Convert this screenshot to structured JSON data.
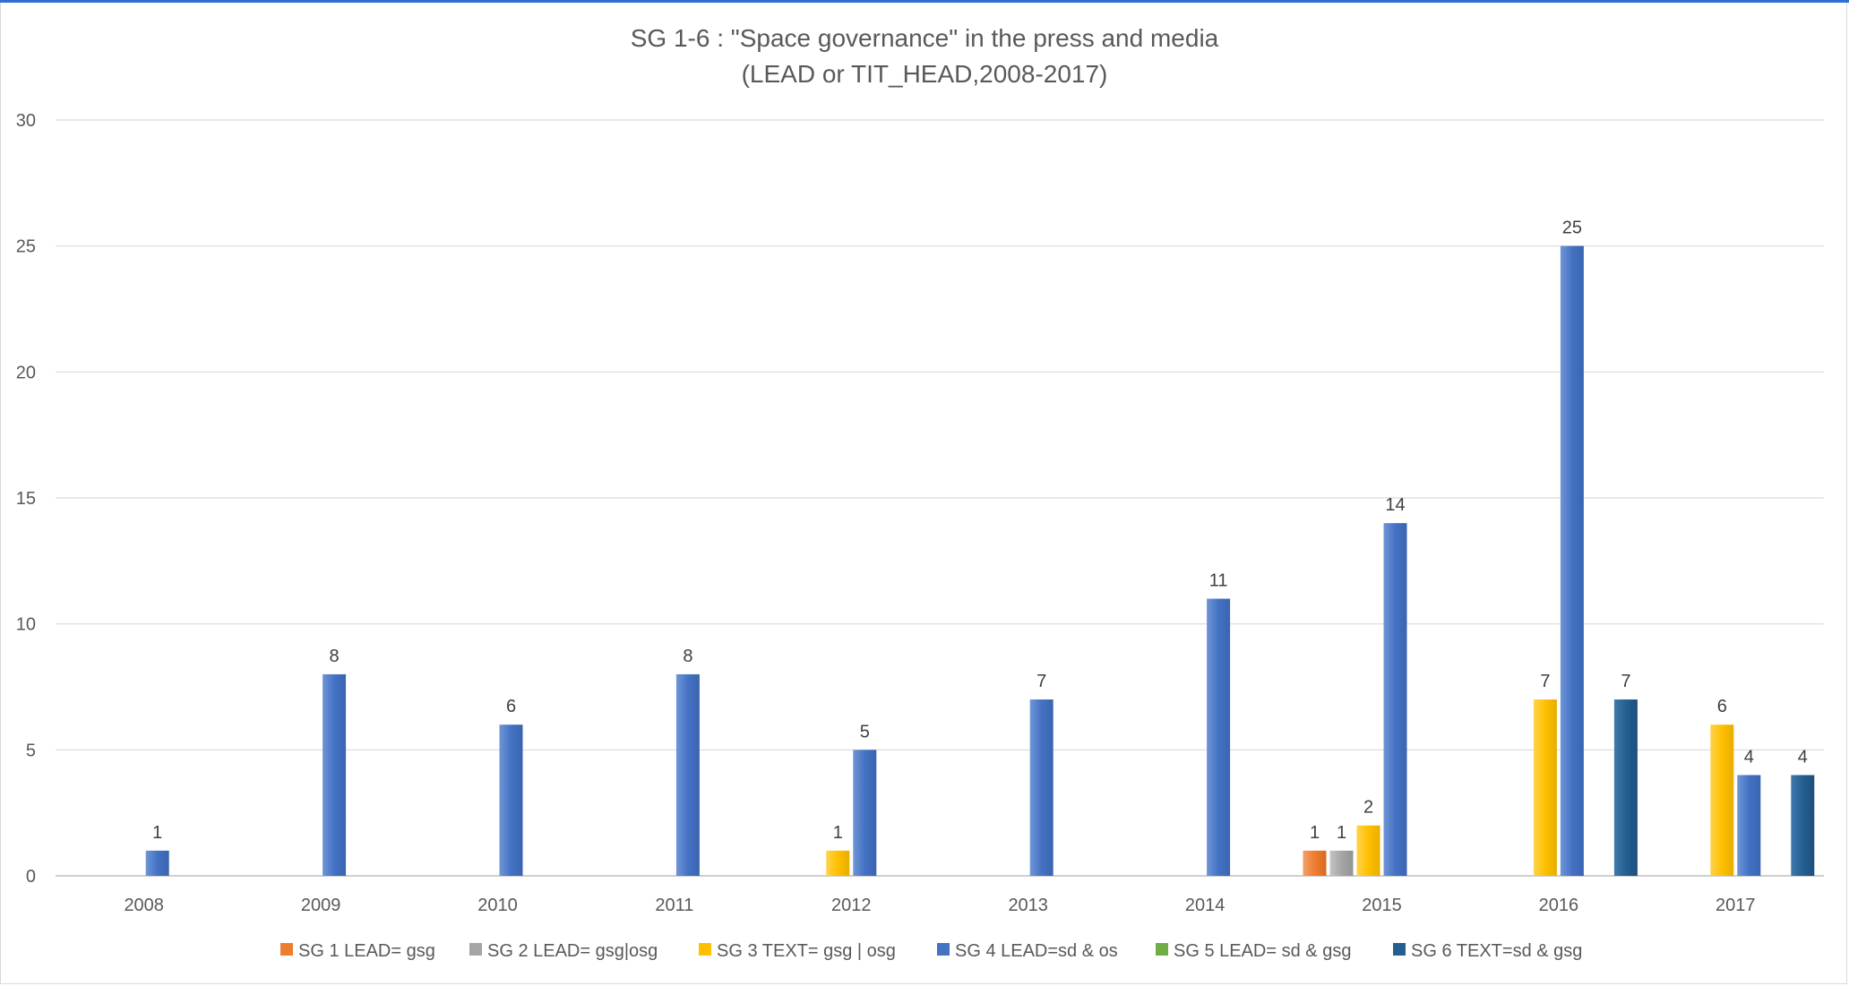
{
  "chart_data": {
    "type": "bar",
    "title": "SG 1-6 : \"Space governance\" in the press and media",
    "subtitle": "(LEAD or TIT_HEAD,2008-2017)",
    "xlabel": "",
    "ylabel": "",
    "ylim": [
      0,
      30
    ],
    "yticks": [
      "0",
      "5",
      "10",
      "15",
      "20",
      "25",
      "30"
    ],
    "grid": true,
    "legend_position": "bottom",
    "categories": [
      "2008",
      "2009",
      "2010",
      "2011",
      "2012",
      "2013",
      "2014",
      "2015",
      "2016",
      "2017"
    ],
    "series": [
      {
        "name": "SG 1 LEAD= gsg",
        "color": "#ed7d31",
        "values": [
          null,
          null,
          null,
          null,
          null,
          null,
          null,
          1,
          null,
          null
        ]
      },
      {
        "name": "SG 2 LEAD= gsg|osg",
        "color": "#a5a5a5",
        "values": [
          null,
          null,
          null,
          null,
          null,
          null,
          null,
          1,
          null,
          null
        ]
      },
      {
        "name": "SG 3 TEXT= gsg | osg",
        "color": "#ffc000",
        "values": [
          null,
          null,
          null,
          null,
          1,
          null,
          null,
          2,
          7,
          6
        ]
      },
      {
        "name": "SG 4 LEAD=sd & os",
        "color": "#4472c4",
        "values": [
          1,
          8,
          6,
          8,
          5,
          7,
          11,
          14,
          25,
          4
        ]
      },
      {
        "name": "SG 5 LEAD= sd & gsg",
        "color": "#70ad47",
        "values": [
          null,
          null,
          null,
          null,
          null,
          null,
          null,
          null,
          null,
          null
        ]
      },
      {
        "name": "SG 6 TEXT=sd & gsg",
        "color": "#255e91",
        "values": [
          null,
          null,
          null,
          null,
          null,
          null,
          null,
          null,
          7,
          4
        ]
      }
    ]
  }
}
